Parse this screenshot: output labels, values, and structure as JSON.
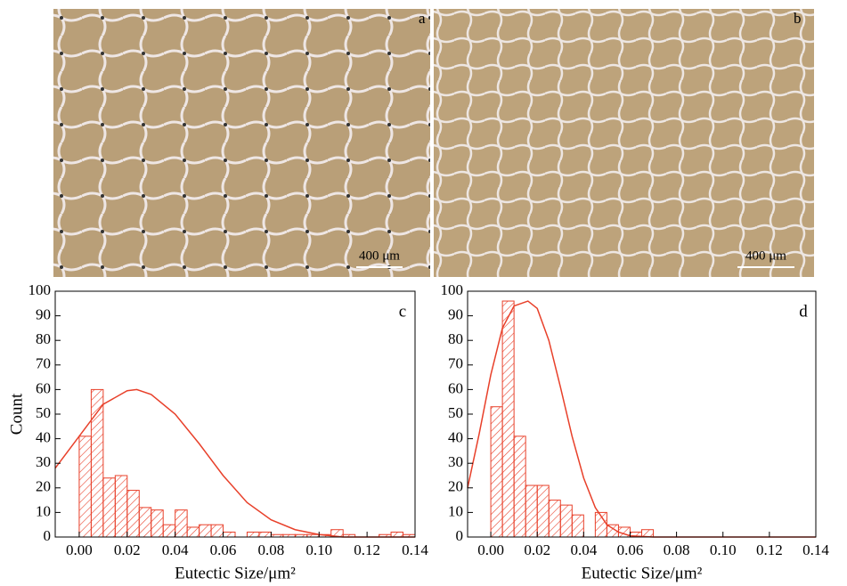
{
  "images": [
    {
      "label": "a",
      "scale_bar": "400 μm"
    },
    {
      "label": "b",
      "scale_bar": "400 μm"
    }
  ],
  "chart_data": [
    {
      "type": "histogram",
      "panel": "c",
      "ylabel": "Count",
      "xlabel": "Eutectic Size/μm²",
      "color": "#e8402a",
      "bins": [
        0,
        0.005,
        0.01,
        0.015,
        0.02,
        0.025,
        0.03,
        0.035,
        0.04,
        0.045,
        0.05,
        0.055,
        0.06,
        0.065,
        0.07,
        0.075,
        0.08,
        0.085,
        0.09,
        0.095,
        0.1,
        0.105,
        0.11,
        0.115,
        0.12,
        0.125,
        0.13,
        0.135,
        0.14
      ],
      "values": [
        41,
        60,
        24,
        25,
        19,
        12,
        11,
        5,
        11,
        4,
        5,
        5,
        2,
        0,
        2,
        2,
        1,
        1,
        1,
        1,
        1,
        3,
        1,
        0,
        0,
        1,
        2,
        1
      ],
      "fit": {
        "x": [
          -0.01,
          0,
          0.01,
          0.02,
          0.024,
          0.03,
          0.04,
          0.05,
          0.06,
          0.07,
          0.08,
          0.09,
          0.1,
          0.11,
          0.14
        ],
        "values": [
          28,
          41,
          54,
          59.5,
          60,
          58,
          50,
          38,
          25,
          14,
          7,
          3,
          1,
          0,
          0
        ]
      },
      "xlim": [
        -0.01,
        0.14
      ],
      "ylim": [
        0,
        100
      ],
      "xticks": [
        {
          "value": 0,
          "label": "0.00"
        },
        {
          "value": 0.02,
          "label": "0.02"
        },
        {
          "value": 0.04,
          "label": "0.04"
        },
        {
          "value": 0.06,
          "label": "0.06"
        },
        {
          "value": 0.08,
          "label": "0.08"
        },
        {
          "value": 0.1,
          "label": "0.10"
        },
        {
          "value": 0.12,
          "label": "0.12"
        },
        {
          "value": 0.14,
          "label": "0.14"
        }
      ],
      "yticks": [
        0,
        10,
        20,
        30,
        40,
        50,
        60,
        70,
        80,
        90,
        100
      ]
    },
    {
      "type": "histogram",
      "panel": "d",
      "xlabel": "Eutectic Size/μm²",
      "color": "#e8402a",
      "bins": [
        0,
        0.005,
        0.01,
        0.015,
        0.02,
        0.025,
        0.03,
        0.035,
        0.04,
        0.045,
        0.05,
        0.055,
        0.06,
        0.065,
        0.07
      ],
      "values": [
        53,
        96,
        41,
        21,
        21,
        15,
        13,
        9,
        0,
        10,
        5,
        4,
        2,
        3
      ],
      "fit": {
        "x": [
          -0.01,
          -0.005,
          0,
          0.005,
          0.01,
          0.016,
          0.02,
          0.025,
          0.03,
          0.035,
          0.04,
          0.045,
          0.05,
          0.055,
          0.06,
          0.07,
          0.14
        ],
        "values": [
          20,
          42,
          66,
          85,
          94,
          96,
          93,
          80,
          61,
          41,
          24,
          12,
          5,
          2,
          0.5,
          0,
          0
        ]
      },
      "xlim": [
        -0.01,
        0.14
      ],
      "ylim": [
        0,
        100
      ],
      "xticks": [
        {
          "value": 0,
          "label": "0.00"
        },
        {
          "value": 0.02,
          "label": "0.02"
        },
        {
          "value": 0.04,
          "label": "0.04"
        },
        {
          "value": 0.06,
          "label": "0.06"
        },
        {
          "value": 0.08,
          "label": "0.08"
        },
        {
          "value": 0.1,
          "label": "0.10"
        },
        {
          "value": 0.12,
          "label": "0.12"
        },
        {
          "value": 0.14,
          "label": "0.14"
        }
      ],
      "yticks": [
        0,
        10,
        20,
        30,
        40,
        50,
        60,
        70,
        80,
        90,
        100
      ]
    }
  ]
}
